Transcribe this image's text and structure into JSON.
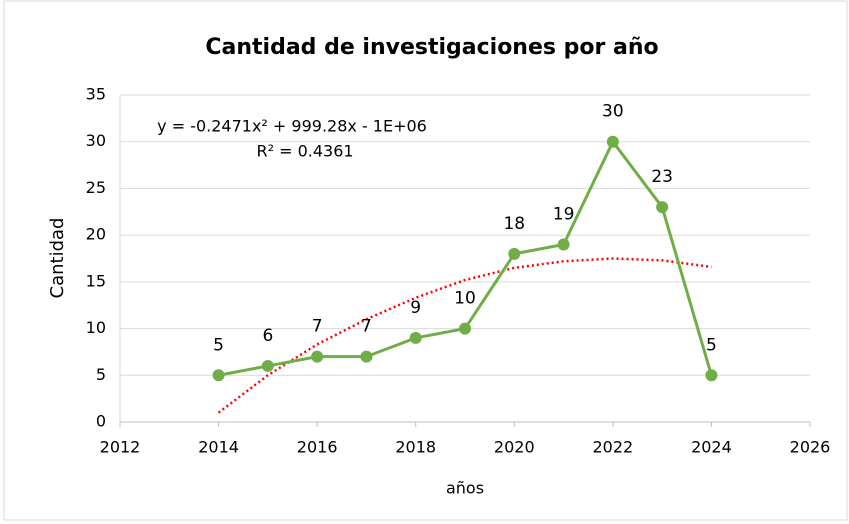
{
  "chart_data": {
    "type": "line",
    "title": "Cantidad de investigaciones por año",
    "x_label": "años",
    "y_label": "Cantidad",
    "x": [
      2014,
      2015,
      2016,
      2017,
      2018,
      2019,
      2020,
      2021,
      2022,
      2023,
      2024
    ],
    "series": [
      {
        "name": "Cantidad",
        "color": "#70ad47",
        "values": [
          5,
          6,
          7,
          7,
          9,
          10,
          18,
          19,
          30,
          23,
          5
        ]
      },
      {
        "name": "Polinómica",
        "color": "#ff0000",
        "values": [
          1,
          5,
          8.3,
          11,
          13.3,
          15.2,
          16.5,
          17.2,
          17.5,
          17.3,
          16.6
        ]
      }
    ],
    "annotations": [
      "y = -0.2471x² + 999.28x - 1E+06",
      "R² = 0.4361"
    ],
    "xlim": [
      2012,
      2026
    ],
    "xticks": [
      2012,
      2014,
      2016,
      2018,
      2020,
      2022,
      2024,
      2026
    ],
    "ylim": [
      0,
      35
    ],
    "yticks": [
      0,
      5,
      10,
      15,
      20,
      25,
      30,
      35
    ],
    "grid": true
  }
}
